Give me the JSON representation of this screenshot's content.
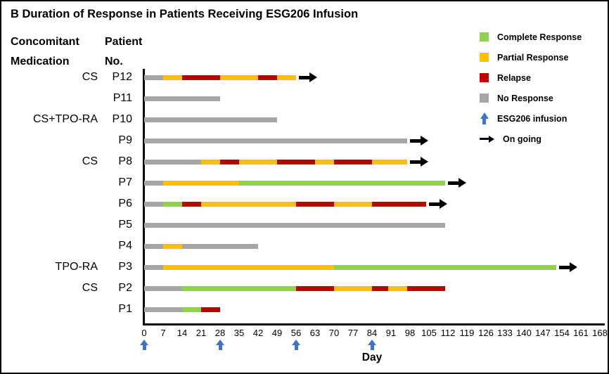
{
  "title": "B Duration of Response in Patients Receiving ESG206 Infusion",
  "column_headers": {
    "medication_line1": "Concomitant",
    "medication_line2": "Medication",
    "patient_line1": "Patient",
    "patient_line2": "No."
  },
  "legend": {
    "items": [
      {
        "label": "Complete Response",
        "swatch": "square",
        "color": "#92D050"
      },
      {
        "label": "Partial Response",
        "swatch": "square",
        "color": "#FFC000"
      },
      {
        "label": "Relapse",
        "swatch": "square",
        "color": "#C00000"
      },
      {
        "label": "No Response",
        "swatch": "square",
        "color": "#A6A6A6"
      },
      {
        "label": "ESG206 infusion",
        "swatch": "arrow-up",
        "color": "#4472C4"
      },
      {
        "label": "On going",
        "swatch": "arrow-right",
        "color": "#000000"
      }
    ]
  },
  "chart_data": {
    "type": "swimmer-timeline",
    "xlabel": "Day",
    "x_range": [
      0,
      168
    ],
    "x_tick_step": 7,
    "x_ticks": [
      0,
      7,
      14,
      21,
      28,
      35,
      42,
      49,
      56,
      63,
      70,
      77,
      84,
      91,
      98,
      105,
      112,
      119,
      126,
      133,
      140,
      147,
      154,
      161,
      168
    ],
    "infusion_days": [
      0,
      28,
      56,
      84
    ],
    "status_colors": {
      "complete": "#92D050",
      "partial": "#FFC000",
      "relapse": "#C00000",
      "none": "#A6A6A6",
      "infusion_arrow": "#4472C4",
      "ongoing_arrow": "#000000"
    },
    "patients": [
      {
        "id": "P12",
        "medication": "CS",
        "ongoing": true,
        "segments": [
          [
            "none",
            0,
            7
          ],
          [
            "partial",
            7,
            14
          ],
          [
            "relapse",
            14,
            28
          ],
          [
            "partial",
            28,
            42
          ],
          [
            "relapse",
            42,
            49
          ],
          [
            "partial",
            49,
            56
          ]
        ]
      },
      {
        "id": "P11",
        "medication": "",
        "ongoing": false,
        "segments": [
          [
            "none",
            0,
            28
          ]
        ]
      },
      {
        "id": "P10",
        "medication": "CS+TPO-RA",
        "ongoing": false,
        "segments": [
          [
            "none",
            0,
            49
          ]
        ]
      },
      {
        "id": "P9",
        "medication": "",
        "ongoing": true,
        "segments": [
          [
            "none",
            0,
            97
          ]
        ]
      },
      {
        "id": "P8",
        "medication": "CS",
        "ongoing": true,
        "segments": [
          [
            "none",
            0,
            21
          ],
          [
            "partial",
            21,
            28
          ],
          [
            "relapse",
            28,
            35
          ],
          [
            "partial",
            35,
            49
          ],
          [
            "relapse",
            49,
            63
          ],
          [
            "partial",
            63,
            70
          ],
          [
            "relapse",
            70,
            84
          ],
          [
            "partial",
            84,
            97
          ]
        ]
      },
      {
        "id": "P7",
        "medication": "",
        "ongoing": true,
        "segments": [
          [
            "none",
            0,
            7
          ],
          [
            "partial",
            7,
            35
          ],
          [
            "complete",
            35,
            111
          ]
        ]
      },
      {
        "id": "P6",
        "medication": "",
        "ongoing": true,
        "segments": [
          [
            "none",
            0,
            7
          ],
          [
            "complete",
            7,
            14
          ],
          [
            "relapse",
            14,
            21
          ],
          [
            "partial",
            21,
            56
          ],
          [
            "relapse",
            56,
            70
          ],
          [
            "partial",
            70,
            84
          ],
          [
            "relapse",
            84,
            104
          ]
        ]
      },
      {
        "id": "P5",
        "medication": "",
        "ongoing": false,
        "segments": [
          [
            "none",
            0,
            111
          ]
        ]
      },
      {
        "id": "P4",
        "medication": "",
        "ongoing": false,
        "segments": [
          [
            "none",
            0,
            7
          ],
          [
            "partial",
            7,
            14
          ],
          [
            "none",
            14,
            42
          ]
        ]
      },
      {
        "id": "P3",
        "medication": "TPO-RA",
        "ongoing": true,
        "segments": [
          [
            "none",
            0,
            7
          ],
          [
            "partial",
            7,
            70
          ],
          [
            "complete",
            70,
            152
          ]
        ]
      },
      {
        "id": "P2",
        "medication": "CS",
        "ongoing": false,
        "segments": [
          [
            "none",
            0,
            14
          ],
          [
            "complete",
            14,
            56
          ],
          [
            "relapse",
            56,
            70
          ],
          [
            "partial",
            70,
            84
          ],
          [
            "relapse",
            84,
            90
          ],
          [
            "partial",
            90,
            97
          ],
          [
            "relapse",
            97,
            111
          ]
        ]
      },
      {
        "id": "P1",
        "medication": "",
        "ongoing": false,
        "segments": [
          [
            "none",
            0,
            14
          ],
          [
            "complete",
            14,
            21
          ],
          [
            "relapse",
            21,
            28
          ]
        ]
      }
    ]
  }
}
